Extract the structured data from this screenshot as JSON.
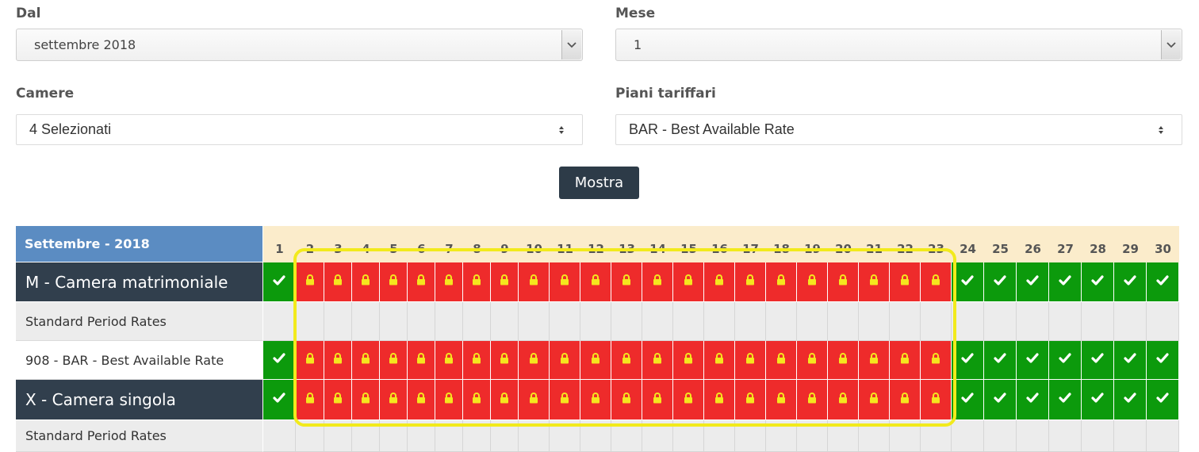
{
  "filters": {
    "from_label": "Dal",
    "from_value": "settembre 2018",
    "months_label": "Mese",
    "months_value": "1",
    "rooms_label": "Camere",
    "rooms_value": "4 Selezionati",
    "rateplans_label": "Piani tariffari",
    "rateplans_value": "BAR - Best Available Rate",
    "show_button": "Mostra"
  },
  "calendar": {
    "month_title": "Settembre - 2018",
    "days": [
      "1",
      "2",
      "3",
      "4",
      "5",
      "6",
      "7",
      "8",
      "9",
      "10",
      "11",
      "12",
      "13",
      "14",
      "15",
      "16",
      "17",
      "18",
      "19",
      "20",
      "21",
      "22",
      "23",
      "24",
      "25",
      "26",
      "27",
      "28",
      "29",
      "30"
    ],
    "rows": [
      {
        "type": "room",
        "label": "M - Camera matrimoniale",
        "cells": "occccccccccccccccccccccooooooo"
      },
      {
        "type": "plan",
        "label": "Standard Period Rates",
        "cells": "eeeeeeeeeeeeeeeeeeeeeeeeeeeeee"
      },
      {
        "type": "rate",
        "label": "908 - BAR - Best Available Rate",
        "cells": "occccccccccccccccccccccooooooo"
      },
      {
        "type": "room",
        "label": "X - Camera singola",
        "cells": "occccccccccccccccccccccooooooo"
      },
      {
        "type": "plan",
        "label": "Standard Period Rates",
        "cells": "eeeeeeeeeeeeeeeeeeeeeeeeeeeeee"
      }
    ],
    "legend": {
      "o": "open",
      "c": "closed",
      "e": "empty"
    },
    "icons": {
      "open": "check-icon",
      "closed": "lock-icon"
    },
    "colors": {
      "open": "#0c9a0c",
      "closed": "#ee2b2b",
      "lock": "#f5e61e",
      "highlight": "#f2ea1c"
    }
  }
}
